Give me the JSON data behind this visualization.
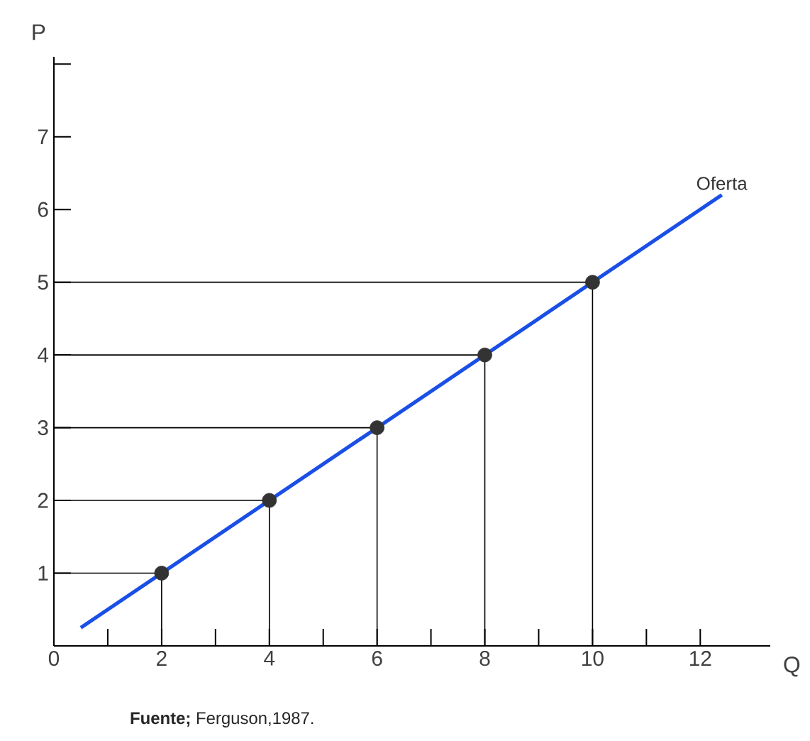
{
  "chart_data": {
    "type": "line",
    "xlabel": "Q",
    "ylabel": "P",
    "xlim": [
      0,
      13.3
    ],
    "ylim": [
      0,
      8.1
    ],
    "xticks": [
      0,
      {
        "value": 1,
        "label": null
      },
      2,
      {
        "value": 3,
        "label": null
      },
      4,
      {
        "value": 5,
        "label": null
      },
      6,
      {
        "value": 7,
        "label": null
      },
      8,
      {
        "value": 9,
        "label": null
      },
      10,
      {
        "value": 11,
        "label": null
      },
      12
    ],
    "yticks": [
      1,
      2,
      3,
      4,
      5,
      6,
      7,
      {
        "value": 8,
        "label": null
      }
    ],
    "grid": false,
    "legend": false,
    "series": [
      {
        "color": "#000000",
        "x": [
          2,
          2,
          0
        ],
        "values": [
          0,
          1,
          1
        ]
      },
      {
        "color": "#000000",
        "x": [
          4,
          4,
          0
        ],
        "values": [
          0,
          2,
          2
        ]
      },
      {
        "color": "#000000",
        "x": [
          6,
          6,
          0
        ],
        "values": [
          0,
          3,
          3
        ]
      },
      {
        "color": "#000000",
        "x": [
          8,
          8,
          0
        ],
        "values": [
          0,
          4,
          4
        ]
      },
      {
        "color": "#000000",
        "x": [
          10,
          10,
          0
        ],
        "values": [
          0,
          5,
          5
        ]
      },
      {
        "type": "line",
        "name": "Oferta",
        "color": "#1a4fe6",
        "x": [
          0.5,
          12.4
        ],
        "values": [
          0.25,
          6.2
        ]
      },
      {
        "type": "scatter",
        "color": "#333333",
        "marker": "circle",
        "x": [
          2,
          4,
          6,
          8,
          10
        ],
        "values": [
          1,
          2,
          3,
          4,
          5
        ]
      }
    ],
    "annotations": [
      "**Fuente;** Ferguson,1987."
    ]
  }
}
